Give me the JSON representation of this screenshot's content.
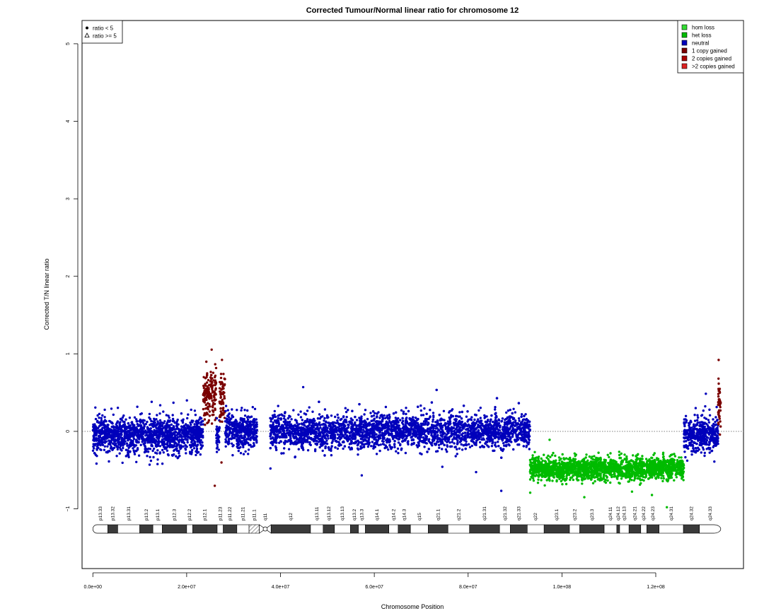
{
  "chart_data": {
    "type": "scatter",
    "title": "Corrected Tumour/Normal linear ratio for chromosome  12",
    "xlabel": "Chromosome Position",
    "ylabel": "Corrected T/N linear ratio",
    "xlim": [
      -2300000,
      138700000
    ],
    "ylim": [
      -1.77,
      5.3
    ],
    "x_ticks": [
      0,
      20000000,
      40000000,
      60000000,
      80000000,
      100000000,
      120000000
    ],
    "x_tick_labels": [
      "0.0e+00",
      "2.0e+07",
      "4.0e+07",
      "6.0e+07",
      "8.0e+07",
      "1.0e+08",
      "1.2e+08"
    ],
    "y_ticks": [
      -1,
      0,
      1,
      2,
      3,
      4,
      5
    ],
    "y_tick_labels": [
      "−1",
      "0",
      "1",
      "2",
      "3",
      "4",
      "5"
    ],
    "reference_line": 0,
    "legend_shape": {
      "position": "top-left",
      "entries": [
        {
          "label": "ratio < 5",
          "marker": "filled-circle"
        },
        {
          "label": "ratio >= 5",
          "marker": "open-triangle"
        }
      ]
    },
    "legend_state": {
      "position": "top-right",
      "entries": [
        {
          "label": "hom loss",
          "color": "#33dd33"
        },
        {
          "label": "het loss",
          "color": "#00bb00"
        },
        {
          "label": "neutral",
          "color": "#0000bb"
        },
        {
          "label": "1 copy gained",
          "color": "#7a0000"
        },
        {
          "label": "2 copies gained",
          "color": "#aa0000"
        },
        {
          "label": ">2 copies gained",
          "color": "#dd2222"
        }
      ]
    },
    "series": [
      {
        "state": "neutral",
        "color": "#0000bb",
        "x_range": [
          0,
          23500000
        ],
        "mean": -0.05,
        "spread": 0.2
      },
      {
        "state": "1 copy gained",
        "color": "#7a0000",
        "x_range": [
          23500000,
          26300000
        ],
        "mean": 0.45,
        "spread": 0.3
      },
      {
        "state": "neutral",
        "color": "#0000bb",
        "x_range": [
          26300000,
          27000000
        ],
        "mean": -0.05,
        "spread": 0.2
      },
      {
        "state": "1 copy gained",
        "color": "#7a0000",
        "x_range": [
          27000000,
          28200000
        ],
        "mean": 0.45,
        "spread": 0.3
      },
      {
        "state": "neutral",
        "color": "#0000bb",
        "x_range": [
          28200000,
          35000000
        ],
        "mean": 0.0,
        "spread": 0.2
      },
      {
        "state": "neutral",
        "color": "#0000bb",
        "x_range": [
          37800000,
          93200000
        ],
        "mean": 0.0,
        "spread": 0.2
      },
      {
        "state": "het loss",
        "color": "#00bb00",
        "x_range": [
          93200000,
          126000000
        ],
        "mean": -0.48,
        "spread": 0.13
      },
      {
        "state": "neutral",
        "color": "#0000bb",
        "x_range": [
          126000000,
          133300000
        ],
        "mean": -0.05,
        "spread": 0.2
      },
      {
        "state": "1 copy gained",
        "color": "#7a0000",
        "x_range": [
          133300000,
          133850000
        ],
        "mean": 0.35,
        "spread": 0.3
      }
    ],
    "cytobands": [
      {
        "name": "p13.33",
        "start": 0,
        "end": 3200000,
        "stain": "gneg"
      },
      {
        "name": "p13.32",
        "start": 3200000,
        "end": 5300000,
        "stain": "gpos"
      },
      {
        "name": "p13.31",
        "start": 5300000,
        "end": 10000000,
        "stain": "gneg"
      },
      {
        "name": "p13.2",
        "start": 10000000,
        "end": 12800000,
        "stain": "gpos"
      },
      {
        "name": "p13.1",
        "start": 12800000,
        "end": 14800000,
        "stain": "gneg"
      },
      {
        "name": "p12.3",
        "start": 14800000,
        "end": 20000000,
        "stain": "gpos"
      },
      {
        "name": "p12.2",
        "start": 20000000,
        "end": 21300000,
        "stain": "gneg"
      },
      {
        "name": "p12.1",
        "start": 21300000,
        "end": 26500000,
        "stain": "gpos"
      },
      {
        "name": "p11.23",
        "start": 26500000,
        "end": 27800000,
        "stain": "gneg"
      },
      {
        "name": "p11.22",
        "start": 27800000,
        "end": 30700000,
        "stain": "gpos"
      },
      {
        "name": "p11.21",
        "start": 30700000,
        "end": 33300000,
        "stain": "gneg"
      },
      {
        "name": "p11.1",
        "start": 33300000,
        "end": 35500000,
        "stain": "stalk"
      },
      {
        "name": "q11",
        "start": 35500000,
        "end": 38000000,
        "stain": "acen"
      },
      {
        "name": "q12",
        "start": 38000000,
        "end": 46400000,
        "stain": "gpos"
      },
      {
        "name": "q13.11",
        "start": 46400000,
        "end": 49100000,
        "stain": "gneg"
      },
      {
        "name": "q13.12",
        "start": 49100000,
        "end": 51500000,
        "stain": "gpos"
      },
      {
        "name": "q13.13",
        "start": 51500000,
        "end": 54900000,
        "stain": "gneg"
      },
      {
        "name": "q13.2",
        "start": 54900000,
        "end": 56600000,
        "stain": "gpos"
      },
      {
        "name": "q13.3",
        "start": 56600000,
        "end": 58100000,
        "stain": "gneg"
      },
      {
        "name": "q14.1",
        "start": 58100000,
        "end": 63100000,
        "stain": "gpos"
      },
      {
        "name": "q14.2",
        "start": 63100000,
        "end": 65100000,
        "stain": "gneg"
      },
      {
        "name": "q14.3",
        "start": 65100000,
        "end": 67700000,
        "stain": "gpos"
      },
      {
        "name": "q15",
        "start": 67700000,
        "end": 71500000,
        "stain": "gneg"
      },
      {
        "name": "q21.1",
        "start": 71500000,
        "end": 75700000,
        "stain": "gpos"
      },
      {
        "name": "q21.2",
        "start": 75700000,
        "end": 80300000,
        "stain": "gneg"
      },
      {
        "name": "q21.31",
        "start": 80300000,
        "end": 86700000,
        "stain": "gpos"
      },
      {
        "name": "q21.32",
        "start": 86700000,
        "end": 89000000,
        "stain": "gneg"
      },
      {
        "name": "q21.33",
        "start": 89000000,
        "end": 92600000,
        "stain": "gpos"
      },
      {
        "name": "q22",
        "start": 92600000,
        "end": 96200000,
        "stain": "gneg"
      },
      {
        "name": "q23.1",
        "start": 96200000,
        "end": 101600000,
        "stain": "gpos"
      },
      {
        "name": "q23.2",
        "start": 101600000,
        "end": 103800000,
        "stain": "gneg"
      },
      {
        "name": "q23.3",
        "start": 103800000,
        "end": 109000000,
        "stain": "gpos"
      },
      {
        "name": "q24.11",
        "start": 109000000,
        "end": 111700000,
        "stain": "gneg"
      },
      {
        "name": "q24.12",
        "start": 111700000,
        "end": 112300000,
        "stain": "gpos"
      },
      {
        "name": "q24.13",
        "start": 112300000,
        "end": 114300000,
        "stain": "gneg"
      },
      {
        "name": "q24.21",
        "start": 114300000,
        "end": 116800000,
        "stain": "gpos"
      },
      {
        "name": "q24.22",
        "start": 116800000,
        "end": 118100000,
        "stain": "gneg"
      },
      {
        "name": "q24.23",
        "start": 118100000,
        "end": 120700000,
        "stain": "gpos"
      },
      {
        "name": "q24.31",
        "start": 120700000,
        "end": 125900000,
        "stain": "gneg"
      },
      {
        "name": "q24.32",
        "start": 125900000,
        "end": 129300000,
        "stain": "gpos"
      },
      {
        "name": "q24.33",
        "start": 129300000,
        "end": 133850000,
        "stain": "gneg"
      }
    ]
  }
}
